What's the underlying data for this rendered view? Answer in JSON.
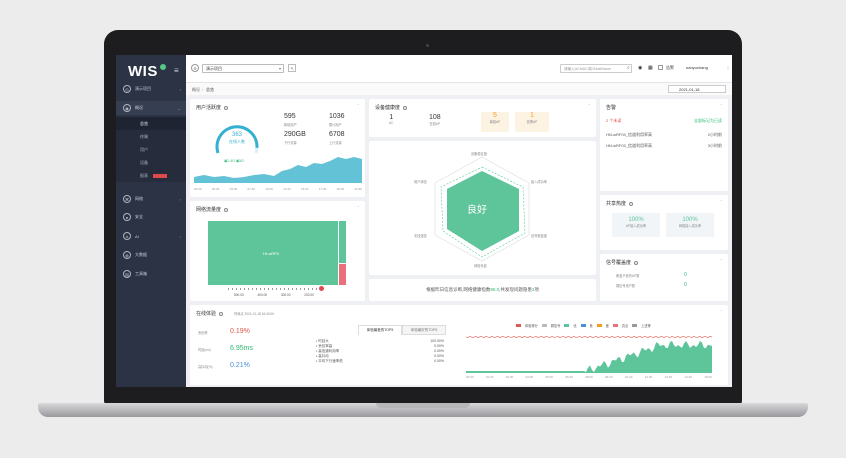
{
  "app": {
    "logo": "WIS",
    "menu_icon": "≡"
  },
  "sidebar": {
    "items": [
      {
        "label": "演示项目",
        "icon": "location-icon"
      },
      {
        "label": "概况",
        "icon": "eye-icon"
      },
      {
        "label": "网络",
        "icon": "network-icon"
      },
      {
        "label": "安全",
        "icon": "shield-icon"
      },
      {
        "label": "AI",
        "icon": "ai-icon"
      },
      {
        "label": "大数据",
        "icon": "data-icon"
      },
      {
        "label": "工具箱",
        "icon": "toolbox-icon"
      }
    ],
    "subitems": [
      "总览",
      "终端",
      "用户",
      "设备",
      "报表"
    ],
    "badge": ""
  },
  "topbar": {
    "project_select": "演示项目",
    "search_placeholder": "请输入ACMAC或DHostName",
    "user": "nanyuchang",
    "alarm_label": "告警",
    "date": "2021-01-18"
  },
  "breadcrumb": {
    "a": "概况",
    "b": "总览"
  },
  "users": {
    "title": "用户活跃度",
    "gauge_value": "363",
    "gauge_sub": "在线人数",
    "legend": "▣2.4G  ▣5G",
    "stats": [
      {
        "value": "595",
        "label": "新增用户"
      },
      {
        "value": "1036",
        "label": "累计用户"
      },
      {
        "value": "290GB",
        "label": "下行流量"
      },
      {
        "value": "6708",
        "label": "上行流量"
      }
    ],
    "times": [
      "00:00",
      "02:30",
      "05:00",
      "07:30",
      "10:00",
      "12:30",
      "15:00",
      "17:30",
      "20:00",
      "22:30"
    ]
  },
  "health": {
    "title": "设备健康度",
    "cells": [
      {
        "value": "1",
        "label": "AC"
      },
      {
        "value": "108",
        "label": "在线AP"
      },
      {
        "value": "5",
        "label": "离线AP"
      },
      {
        "value": "1",
        "label": "告警AP"
      }
    ],
    "radar_center": "良好",
    "radar_labels": [
      "设备稳定度",
      "接入成功率",
      "信号覆盖度",
      "网络负载",
      "无线漫游",
      "用户体验"
    ],
    "summary_prefix": "根据昨日信息诊断,网络健康指数",
    "score": "95.0",
    "summary_mid": ",共发现问题隐患",
    "issues": "2",
    "summary_suffix": "项"
  },
  "alarm": {
    "title": "告警",
    "new_count": "2 个未读",
    "mark_read": "全部标记为已读",
    "rows": [
      {
        "text": "HN-wRF03_信道利用率高",
        "time": "2小时前"
      },
      {
        "text": "HN-wRF03_信道利用率高",
        "time": "3小时前"
      }
    ]
  },
  "share": {
    "title": "共享热度",
    "cards": [
      {
        "value": "100%",
        "label": "AP接入成功率"
      },
      {
        "value": "100%",
        "label": "网络接入成功率"
      }
    ]
  },
  "signal": {
    "title": "信号覆盖度",
    "rows": [
      {
        "label": "覆盖不良的AP数",
        "value": "0"
      },
      {
        "label": "弱信号用户数",
        "value": "0"
      }
    ]
  },
  "traffic": {
    "title": "网络流量度",
    "treemap_label": "HI-wRF5",
    "axis": [
      "500.00",
      "400.00",
      "300.00",
      "200.00"
    ]
  },
  "realtime": {
    "title": "在线体验",
    "time_label": "时间点 2021-01-18 16:00:00",
    "metrics": [
      {
        "label": "丢包率",
        "value": "0.19%",
        "color": "#e05a4e"
      },
      {
        "label": "时延(ms)",
        "value": "6.95ms",
        "color": "#2eb872"
      },
      {
        "label": "高抖动(%)",
        "value": "0.21%",
        "color": "#4a90d9"
      }
    ],
    "tabs": [
      "体验最差的TOP5",
      "体验最好的TOP5"
    ],
    "list": [
      {
        "label": "时延大",
        "value": "100.00%"
      },
      {
        "label": "丢包率高",
        "value": "0.00%"
      },
      {
        "label": "高信道利用率",
        "value": "0.00%"
      },
      {
        "label": "高抖动",
        "value": "0.00%"
      },
      {
        "label": "平均下行速率低",
        "value": "0.00%"
      }
    ],
    "legend": [
      "体验得分",
      "弱信号",
      "优",
      "良",
      "差",
      "亮点",
      "上述等"
    ],
    "times": [
      "00:00",
      "01:20",
      "02:40",
      "04:00",
      "05:20",
      "06:40",
      "08:00",
      "09:20",
      "10:40",
      "12:00",
      "13:20",
      "14:40",
      "16:00"
    ]
  },
  "colors": {
    "sidebar": "#2c3345",
    "accent": "#1890ff",
    "green": "#5ec49a",
    "red": "#e05a4e",
    "area": "#63c2d6"
  }
}
